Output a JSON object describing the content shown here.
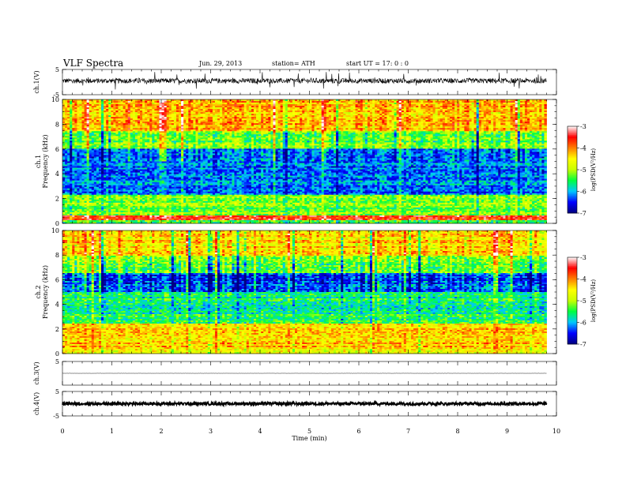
{
  "header": {
    "title": "VLF  Spectra",
    "date": "Jun. 29, 2013",
    "station": "station= ATH",
    "start": "start  UT  =    17: 0  : 0"
  },
  "chart_data": [
    {
      "type": "line",
      "panel": "ch1-waveform",
      "ylabel": "ch.1(V)",
      "ylim": [
        -5,
        5
      ],
      "yticks": [
        "5",
        "-5"
      ],
      "xlim": [
        0,
        10
      ],
      "xmax_data": 9.8,
      "baseline": 0.5,
      "noise_amplitude": 1.0,
      "spike_amplitude": 3.5
    },
    {
      "type": "heatmap",
      "panel": "ch1-spectrogram",
      "ylabel": [
        "ch.1",
        "Frequency  (kHz)"
      ],
      "ylim": [
        0,
        10
      ],
      "yticks": [
        "0",
        "2",
        "4",
        "6",
        "8",
        "10"
      ],
      "xlim": [
        0,
        10
      ],
      "xmax_data": 9.8,
      "colorbar": {
        "label": "log(PSD(V²/Hz)",
        "range": [
          -7,
          -3
        ],
        "ticks": [
          "-3",
          "-4",
          "-5",
          "-6",
          "-7"
        ]
      },
      "bands": [
        {
          "f": [
            0,
            0.3
          ],
          "v": -5.5
        },
        {
          "f": [
            0.3,
            0.7
          ],
          "v": -3.6
        },
        {
          "f": [
            0.7,
            2.3
          ],
          "v": -5.2
        },
        {
          "f": [
            2.3,
            6.0
          ],
          "v": -6.2
        },
        {
          "f": [
            6.0,
            7.5
          ],
          "v": -5.3
        },
        {
          "f": [
            7.5,
            10
          ],
          "v": -4.2
        }
      ]
    },
    {
      "type": "heatmap",
      "panel": "ch2-spectrogram",
      "ylabel": [
        "ch.2",
        "Frequency  (kHz)"
      ],
      "ylim": [
        0,
        10
      ],
      "yticks": [
        "0",
        "2",
        "4",
        "6",
        "8",
        "10"
      ],
      "xlim": [
        0,
        10
      ],
      "xmax_data": 9.8,
      "colorbar": {
        "label": "log(PSD(V²/Hz)",
        "range": [
          -7,
          -3
        ],
        "ticks": [
          "-3",
          "-4",
          "-5",
          "-6",
          "-7"
        ]
      },
      "bands": [
        {
          "f": [
            0,
            0.5
          ],
          "v": -4.6
        },
        {
          "f": [
            0.5,
            2.5
          ],
          "v": -4.3
        },
        {
          "f": [
            2.5,
            5.0
          ],
          "v": -5.6
        },
        {
          "f": [
            5.0,
            6.5
          ],
          "v": -6.3
        },
        {
          "f": [
            6.5,
            8.0
          ],
          "v": -5.2
        },
        {
          "f": [
            8.0,
            10
          ],
          "v": -4.4
        }
      ]
    },
    {
      "type": "line",
      "panel": "ch3-waveform",
      "ylabel": "ch.3(V)",
      "ylim": [
        -5,
        5
      ],
      "yticks": [
        "5"
      ],
      "xlim": [
        0,
        10
      ],
      "xmax_data": 9.8,
      "baseline": 0,
      "noise_amplitude": 0.05
    },
    {
      "type": "line",
      "panel": "ch4-waveform",
      "ylabel": "ch.4(V)",
      "ylim": [
        -5,
        5
      ],
      "yticks": [
        "5",
        "-5"
      ],
      "xlim": [
        0,
        10
      ],
      "xmax_data": 9.8,
      "baseline": 0,
      "noise_amplitude": 0.6
    }
  ],
  "xaxis": {
    "label": "Time  (min)",
    "ticks": [
      "0",
      "1",
      "2",
      "3",
      "4",
      "5",
      "6",
      "7",
      "8",
      "9",
      "10"
    ]
  },
  "colors": {
    "colormap": [
      "#000080",
      "#0000ff",
      "#00c8ff",
      "#00ff40",
      "#c8ff00",
      "#ffff00",
      "#ff8000",
      "#ff0000",
      "#ffffff"
    ]
  }
}
